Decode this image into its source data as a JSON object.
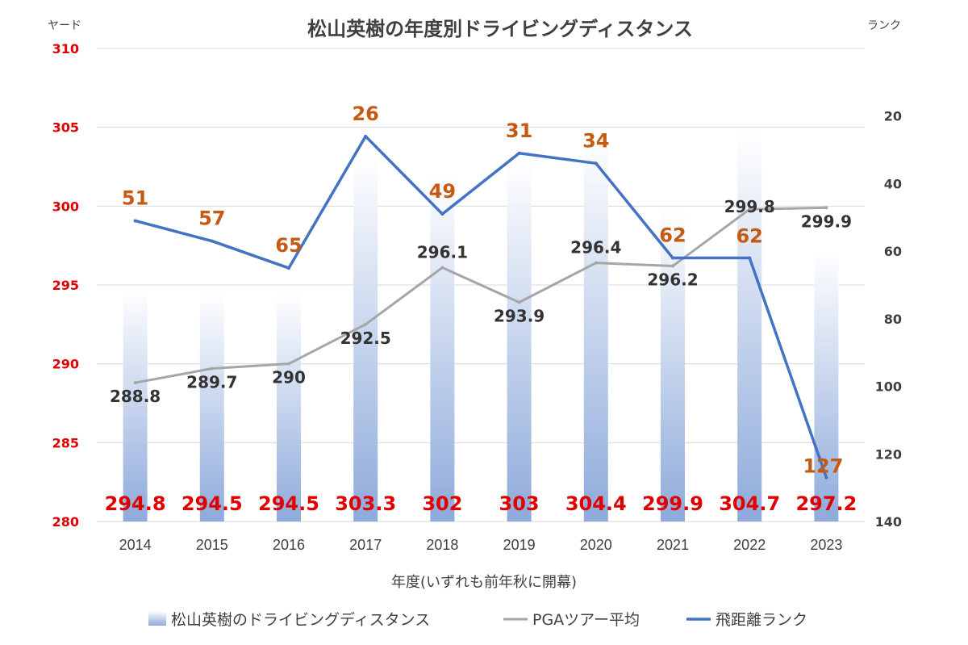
{
  "colors": {
    "bar_top": "#ffffff",
    "bar_bottom": "#8eaadb",
    "pga_line": "#a6a6a6",
    "rank_line": "#4472c4",
    "bar_label": "#e00000",
    "rank_label": "#c55a11",
    "left_axis": "#e00000",
    "right_axis": "#404040"
  },
  "chart_data": {
    "type": "bar",
    "title": "松山英樹の年度別ドライビングディスタンス",
    "ylabel": "ヤード",
    "y2label": "ランク",
    "xlabel": "年度(いずれも前年秋に開幕)",
    "categories": [
      "2014",
      "2015",
      "2016",
      "2017",
      "2018",
      "2019",
      "2020",
      "2021",
      "2022",
      "2023"
    ],
    "ylim": [
      280,
      310
    ],
    "yticks": [
      280,
      285,
      290,
      295,
      300,
      305,
      310
    ],
    "y2lim": [
      140,
      0
    ],
    "y2ticks": [
      20,
      40,
      60,
      80,
      100,
      120,
      140
    ],
    "y2_inverted": true,
    "grid": true,
    "legend_position": "bottom",
    "series": [
      {
        "name": "松山英樹のドライビングディスタンス",
        "kind": "bar",
        "axis": "left",
        "values": [
          294.8,
          294.5,
          294.5,
          303.3,
          302,
          303,
          304.4,
          299.9,
          304.7,
          297.2
        ],
        "labels": [
          "294.8",
          "294.5",
          "294.5",
          "303.3",
          "302",
          "303",
          "304.4",
          "299.9",
          "304.7",
          "297.2"
        ]
      },
      {
        "name": "PGAツアー平均",
        "kind": "line",
        "axis": "left",
        "values": [
          288.8,
          289.7,
          290,
          292.5,
          296.1,
          293.9,
          296.4,
          296.2,
          299.8,
          299.9
        ],
        "labels": [
          "288.8",
          "289.7",
          "290",
          "292.5",
          "296.1",
          "293.9",
          "296.4",
          "296.2",
          "299.8",
          "299.9"
        ]
      },
      {
        "name": "飛距離ランク",
        "kind": "line",
        "axis": "right",
        "values": [
          51,
          57,
          65,
          26,
          49,
          31,
          34,
          62,
          62,
          127
        ],
        "labels": [
          "51",
          "57",
          "65",
          "26",
          "49",
          "31",
          "34",
          "62",
          "62",
          "127"
        ]
      }
    ]
  }
}
